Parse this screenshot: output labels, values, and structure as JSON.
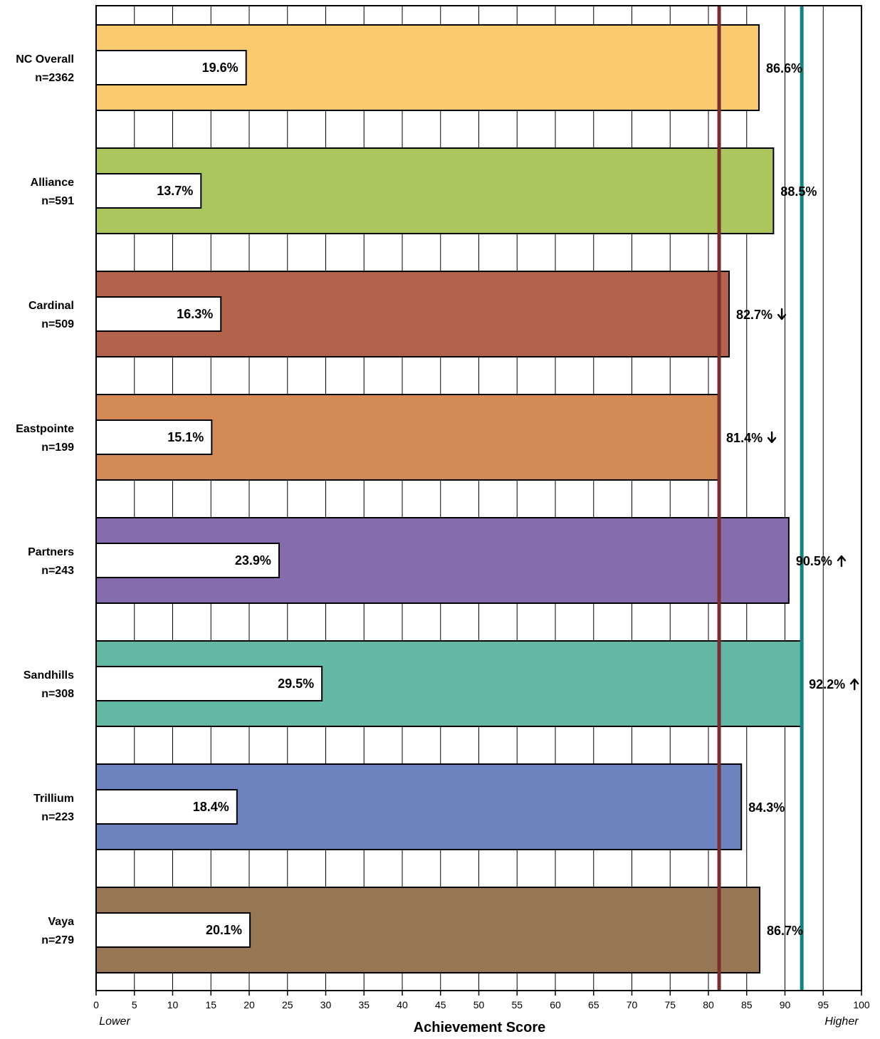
{
  "chart_data": {
    "type": "bar",
    "orientation": "horizontal",
    "xlabel": "Achievement Score",
    "xlim": [
      0,
      100
    ],
    "xticks": [
      0,
      5,
      10,
      15,
      20,
      25,
      30,
      35,
      40,
      45,
      50,
      55,
      60,
      65,
      70,
      75,
      80,
      85,
      90,
      95,
      100
    ],
    "x_low_label": "Lower",
    "x_high_label": "Higher",
    "grid": true,
    "categories": [
      {
        "name": "NC Overall",
        "n": "n=2362"
      },
      {
        "name": "Alliance",
        "n": "n=591"
      },
      {
        "name": "Cardinal",
        "n": "n=509"
      },
      {
        "name": "Eastpointe",
        "n": "n=199"
      },
      {
        "name": "Partners",
        "n": "n=243"
      },
      {
        "name": "Sandhills",
        "n": "n=308"
      },
      {
        "name": "Trillium",
        "n": "n=223"
      },
      {
        "name": "Vaya",
        "n": "n=279"
      }
    ],
    "series": [
      {
        "values": [
          86.6,
          88.5,
          82.7,
          81.4,
          90.5,
          92.2,
          84.3,
          86.7
        ],
        "labels": [
          "86.6%",
          "88.5%",
          "82.7%",
          "81.4%",
          "90.5%",
          "92.2%",
          "84.3%",
          "86.7%"
        ],
        "colors": [
          "#F9CB6E",
          "#ACC65E",
          "#B3634C",
          "#D38A55",
          "#856DAD",
          "#62B8A5",
          "#6D83C0",
          "#977755"
        ],
        "trend": [
          "",
          "",
          "down",
          "down",
          "up",
          "up",
          "",
          ""
        ]
      },
      {
        "values": [
          19.6,
          13.7,
          16.3,
          15.1,
          23.9,
          29.5,
          18.4,
          20.1
        ],
        "labels": [
          "19.6%",
          "13.7%",
          "16.3%",
          "15.1%",
          "23.9%",
          "29.5%",
          "18.4%",
          "20.1%"
        ],
        "color": "#FFFFFF"
      }
    ],
    "reference_lines": [
      {
        "value": 81.4,
        "color": "#7B2D2D"
      },
      {
        "value": 92.2,
        "color": "#12847E"
      }
    ]
  }
}
